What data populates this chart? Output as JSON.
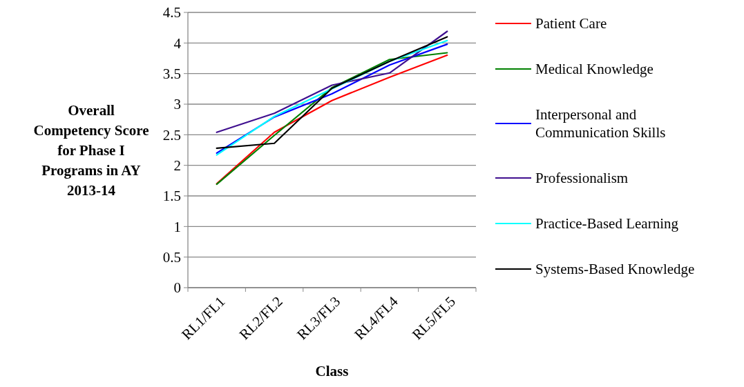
{
  "chart_data": {
    "type": "line",
    "xlabel": "Class",
    "ylabel": "Overall Competency Score for Phase I Programs in AY 2013-14",
    "categories": [
      "RL1/FL1",
      "RL2/FL2",
      "RL3/FL3",
      "RL4/FL4",
      "RL5/FL5"
    ],
    "ylim": [
      0,
      4.5
    ],
    "yticks": [
      0,
      0.5,
      1,
      1.5,
      2,
      2.5,
      3,
      3.5,
      4,
      4.5
    ],
    "grid": "y",
    "legend": "right",
    "marker": "none",
    "line_style": "solid",
    "series": [
      {
        "name": "Patient Care",
        "color": "#ff0000",
        "values": [
          1.7,
          2.54,
          3.06,
          3.44,
          3.8
        ]
      },
      {
        "name": "Medical Knowledge",
        "color": "#008000",
        "values": [
          1.69,
          2.49,
          3.27,
          3.73,
          3.84
        ]
      },
      {
        "name": "Interpersonal and Communication Skills",
        "color": "#0000ff",
        "values": [
          2.2,
          2.79,
          3.17,
          3.64,
          3.98
        ]
      },
      {
        "name": "Professionalism",
        "color": "#3f0f8f",
        "values": [
          2.54,
          2.85,
          3.31,
          3.51,
          4.19
        ]
      },
      {
        "name": "Practice-Based Learning",
        "color": "#00ffff",
        "values": [
          2.17,
          2.8,
          3.25,
          3.7,
          4.04
        ]
      },
      {
        "name": "Systems-Based Knowledge",
        "color": "#000000",
        "values": [
          2.28,
          2.36,
          3.26,
          3.7,
          4.1
        ]
      }
    ]
  }
}
